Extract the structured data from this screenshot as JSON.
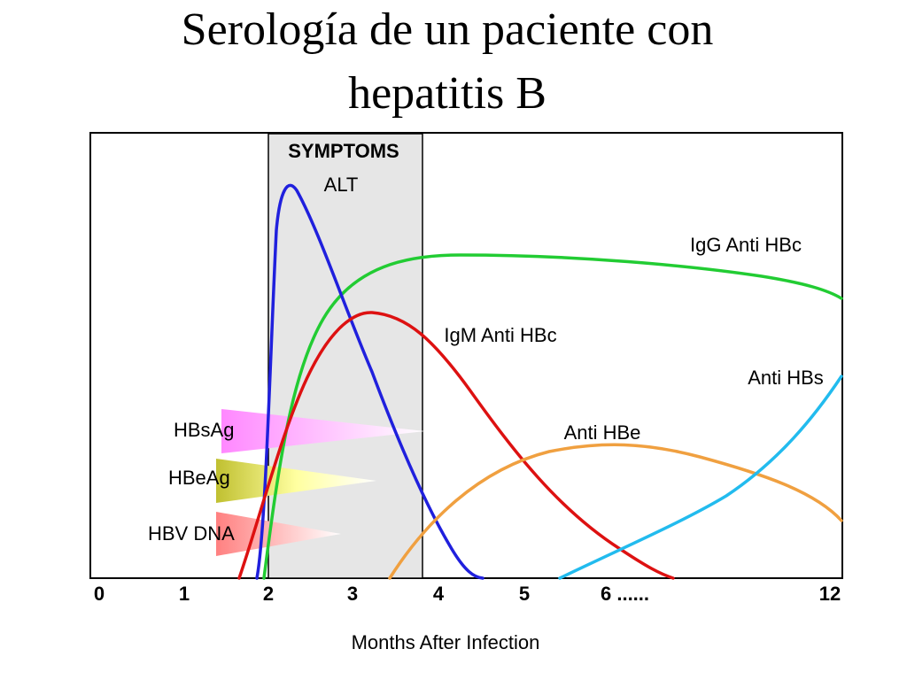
{
  "header": {
    "title_lines": [
      "Serología de un paciente con",
      "hepatitis B"
    ]
  },
  "diagram": {
    "period_label": "SYMPTOMS",
    "curve_labels": {
      "alt": "ALT",
      "igg_anti_hbc": "IgG Anti HBc",
      "igm_anti_hbc": "IgM Anti HBc",
      "anti_hbe": "Anti HBe",
      "anti_hbs": "Anti HBs"
    },
    "marker_labels": {
      "hbsag": "HBsAg",
      "hbeag": "HBeAg",
      "hbv_dna": "HBV DNA"
    },
    "x_tick_labels": [
      "0",
      "1",
      "2",
      "3",
      "4",
      "5",
      "6 ......",
      "12"
    ],
    "x_axis_label": "Months After Infection"
  }
}
